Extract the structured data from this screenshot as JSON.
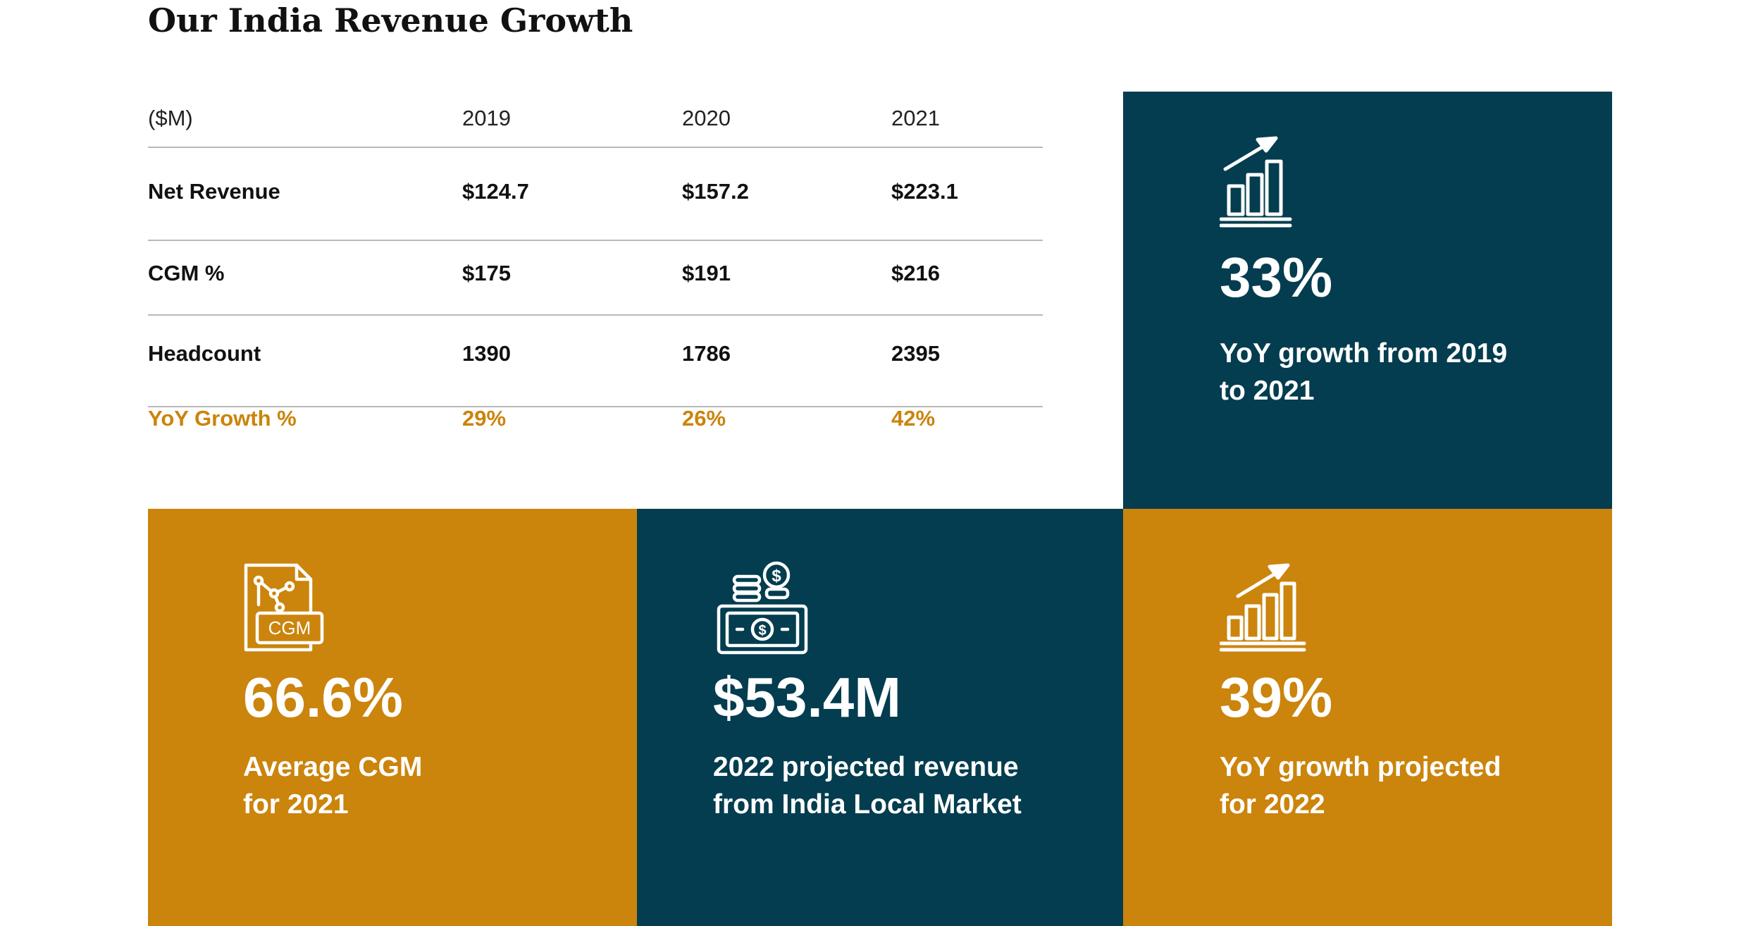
{
  "title": "Our India Revenue Growth",
  "colors": {
    "navy": "#033d4f",
    "gold": "#cb840c",
    "divider": "#b9b9b9",
    "text": "#111111",
    "white": "#ffffff"
  },
  "table": {
    "header": [
      "($M)",
      "2019",
      "2020",
      "2021"
    ],
    "rows": [
      {
        "label": "Net Revenue",
        "values": [
          "$124.7",
          "$157.2",
          "$223.1"
        ]
      },
      {
        "label": "CGM %",
        "values": [
          "$175",
          "$191",
          "$216"
        ]
      },
      {
        "label": "Headcount",
        "values": [
          "1390",
          "1786",
          "2395"
        ]
      },
      {
        "label": "YoY Growth %",
        "values": [
          "29%",
          "26%",
          "42%"
        ]
      }
    ]
  },
  "stats": {
    "growth_2019_2021": {
      "icon": "bar-chart-growth-icon",
      "value": "33%",
      "caption_line1": "YoY growth from 2019",
      "caption_line2": "to 2021"
    },
    "avg_cgm": {
      "icon": "cgm-document-icon",
      "value": "66.6%",
      "caption_line1": "Average CGM",
      "caption_line2": "for 2021",
      "icon_label": "CGM"
    },
    "projected_revenue": {
      "icon": "money-coins-icon",
      "value": "$53.4M",
      "caption_line1": "2022 projected revenue",
      "caption_line2": "from India Local Market"
    },
    "projected_growth": {
      "icon": "bar-chart-growth-icon",
      "value": "39%",
      "caption_line1": "YoY growth projected",
      "caption_line2": "for 2022"
    }
  }
}
